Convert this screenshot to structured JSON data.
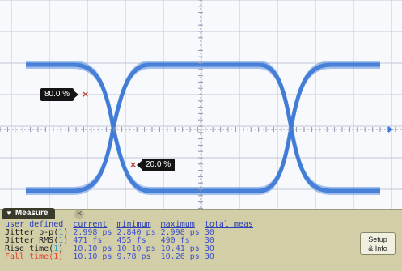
{
  "scope": {
    "markers": {
      "upper_label": "80.0 %",
      "lower_label": "20.0 %"
    },
    "colors": {
      "trace": "#3f7bd6",
      "grid": "#bfc8d9",
      "marker": "#c0392b"
    }
  },
  "measure": {
    "panel_title": "Measure",
    "header": {
      "source": "user defined",
      "current": "current",
      "minimum": "minimum",
      "maximum": "maximum",
      "total": "total meas"
    },
    "rows": [
      {
        "label_pre": "Jitter p-p(",
        "channel": "1",
        "label_post": ")",
        "current": "2.998 ps",
        "minimum": "2.840 ps",
        "maximum": "2.998 ps",
        "total": "30"
      },
      {
        "label_pre": "Jitter RMS(",
        "channel": "1",
        "label_post": ")",
        "current": "471 fs",
        "minimum": "455 fs",
        "maximum": "490 fs",
        "total": "30"
      },
      {
        "label_pre": "Rise time(",
        "channel": "1",
        "label_post": ")",
        "current": "10.10 ps",
        "minimum": "10.10 ps",
        "maximum": "10.41 ps",
        "total": "30"
      },
      {
        "label_pre": "Fall time(",
        "channel": "1",
        "label_post": ")",
        "current": "10.10 ps",
        "minimum": "9.78 ps",
        "maximum": "10.26 ps",
        "total": "30"
      }
    ],
    "setup_button": {
      "line1": "Setup",
      "line2": "& Info"
    }
  }
}
